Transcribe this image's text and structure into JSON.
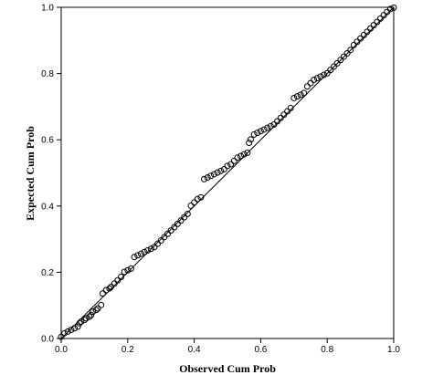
{
  "chart_data": {
    "type": "scatter",
    "title": "",
    "xlabel": "Observed Cum Prob",
    "ylabel": "Expected Cum Prob",
    "xlim": [
      0.0,
      1.0
    ],
    "ylim": [
      0.0,
      1.0
    ],
    "grid": false,
    "legend": "none",
    "x_ticks": [
      "0.0",
      "0.2",
      "0.4",
      "0.6",
      "0.8",
      "1.0"
    ],
    "y_ticks": [
      "0.0",
      "0.2",
      "0.4",
      "0.6",
      "0.8",
      "1.0"
    ],
    "reference_line": [
      [
        0.0,
        0.0
      ],
      [
        1.0,
        1.0
      ]
    ],
    "marker": "open-circle",
    "marker_color": "#000000",
    "points": [
      [
        0.0,
        0.005
      ],
      [
        0.01,
        0.016
      ],
      [
        0.02,
        0.021
      ],
      [
        0.03,
        0.026
      ],
      [
        0.04,
        0.031
      ],
      [
        0.05,
        0.036
      ],
      [
        0.055,
        0.046
      ],
      [
        0.06,
        0.051
      ],
      [
        0.07,
        0.056
      ],
      [
        0.075,
        0.061
      ],
      [
        0.085,
        0.066
      ],
      [
        0.09,
        0.071
      ],
      [
        0.095,
        0.081
      ],
      [
        0.105,
        0.086
      ],
      [
        0.11,
        0.091
      ],
      [
        0.12,
        0.101
      ],
      [
        0.125,
        0.136
      ],
      [
        0.135,
        0.146
      ],
      [
        0.145,
        0.151
      ],
      [
        0.15,
        0.156
      ],
      [
        0.16,
        0.166
      ],
      [
        0.17,
        0.176
      ],
      [
        0.18,
        0.186
      ],
      [
        0.19,
        0.201
      ],
      [
        0.2,
        0.206
      ],
      [
        0.21,
        0.211
      ],
      [
        0.22,
        0.246
      ],
      [
        0.23,
        0.251
      ],
      [
        0.24,
        0.256
      ],
      [
        0.25,
        0.261
      ],
      [
        0.26,
        0.266
      ],
      [
        0.27,
        0.271
      ],
      [
        0.28,
        0.276
      ],
      [
        0.29,
        0.286
      ],
      [
        0.3,
        0.296
      ],
      [
        0.31,
        0.306
      ],
      [
        0.32,
        0.316
      ],
      [
        0.33,
        0.326
      ],
      [
        0.34,
        0.336
      ],
      [
        0.35,
        0.346
      ],
      [
        0.36,
        0.356
      ],
      [
        0.37,
        0.366
      ],
      [
        0.38,
        0.376
      ],
      [
        0.39,
        0.401
      ],
      [
        0.4,
        0.411
      ],
      [
        0.41,
        0.421
      ],
      [
        0.42,
        0.426
      ],
      [
        0.43,
        0.481
      ],
      [
        0.44,
        0.486
      ],
      [
        0.45,
        0.491
      ],
      [
        0.46,
        0.496
      ],
      [
        0.47,
        0.501
      ],
      [
        0.48,
        0.506
      ],
      [
        0.49,
        0.511
      ],
      [
        0.5,
        0.521
      ],
      [
        0.51,
        0.526
      ],
      [
        0.52,
        0.536
      ],
      [
        0.53,
        0.546
      ],
      [
        0.54,
        0.551
      ],
      [
        0.55,
        0.556
      ],
      [
        0.56,
        0.561
      ],
      [
        0.565,
        0.591
      ],
      [
        0.57,
        0.601
      ],
      [
        0.58,
        0.616
      ],
      [
        0.59,
        0.621
      ],
      [
        0.6,
        0.626
      ],
      [
        0.61,
        0.631
      ],
      [
        0.62,
        0.636
      ],
      [
        0.63,
        0.641
      ],
      [
        0.64,
        0.646
      ],
      [
        0.65,
        0.656
      ],
      [
        0.66,
        0.666
      ],
      [
        0.67,
        0.676
      ],
      [
        0.68,
        0.686
      ],
      [
        0.69,
        0.696
      ],
      [
        0.7,
        0.726
      ],
      [
        0.71,
        0.731
      ],
      [
        0.72,
        0.736
      ],
      [
        0.73,
        0.741
      ],
      [
        0.74,
        0.761
      ],
      [
        0.75,
        0.771
      ],
      [
        0.76,
        0.781
      ],
      [
        0.77,
        0.786
      ],
      [
        0.78,
        0.791
      ],
      [
        0.79,
        0.796
      ],
      [
        0.8,
        0.801
      ],
      [
        0.81,
        0.811
      ],
      [
        0.82,
        0.821
      ],
      [
        0.83,
        0.831
      ],
      [
        0.84,
        0.841
      ],
      [
        0.85,
        0.851
      ],
      [
        0.86,
        0.861
      ],
      [
        0.87,
        0.871
      ],
      [
        0.88,
        0.886
      ],
      [
        0.89,
        0.896
      ],
      [
        0.9,
        0.906
      ],
      [
        0.91,
        0.916
      ],
      [
        0.92,
        0.926
      ],
      [
        0.93,
        0.936
      ],
      [
        0.94,
        0.946
      ],
      [
        0.95,
        0.956
      ],
      [
        0.96,
        0.966
      ],
      [
        0.97,
        0.976
      ],
      [
        0.98,
        0.986
      ],
      [
        0.99,
        0.995
      ],
      [
        1.0,
        0.999
      ]
    ]
  }
}
